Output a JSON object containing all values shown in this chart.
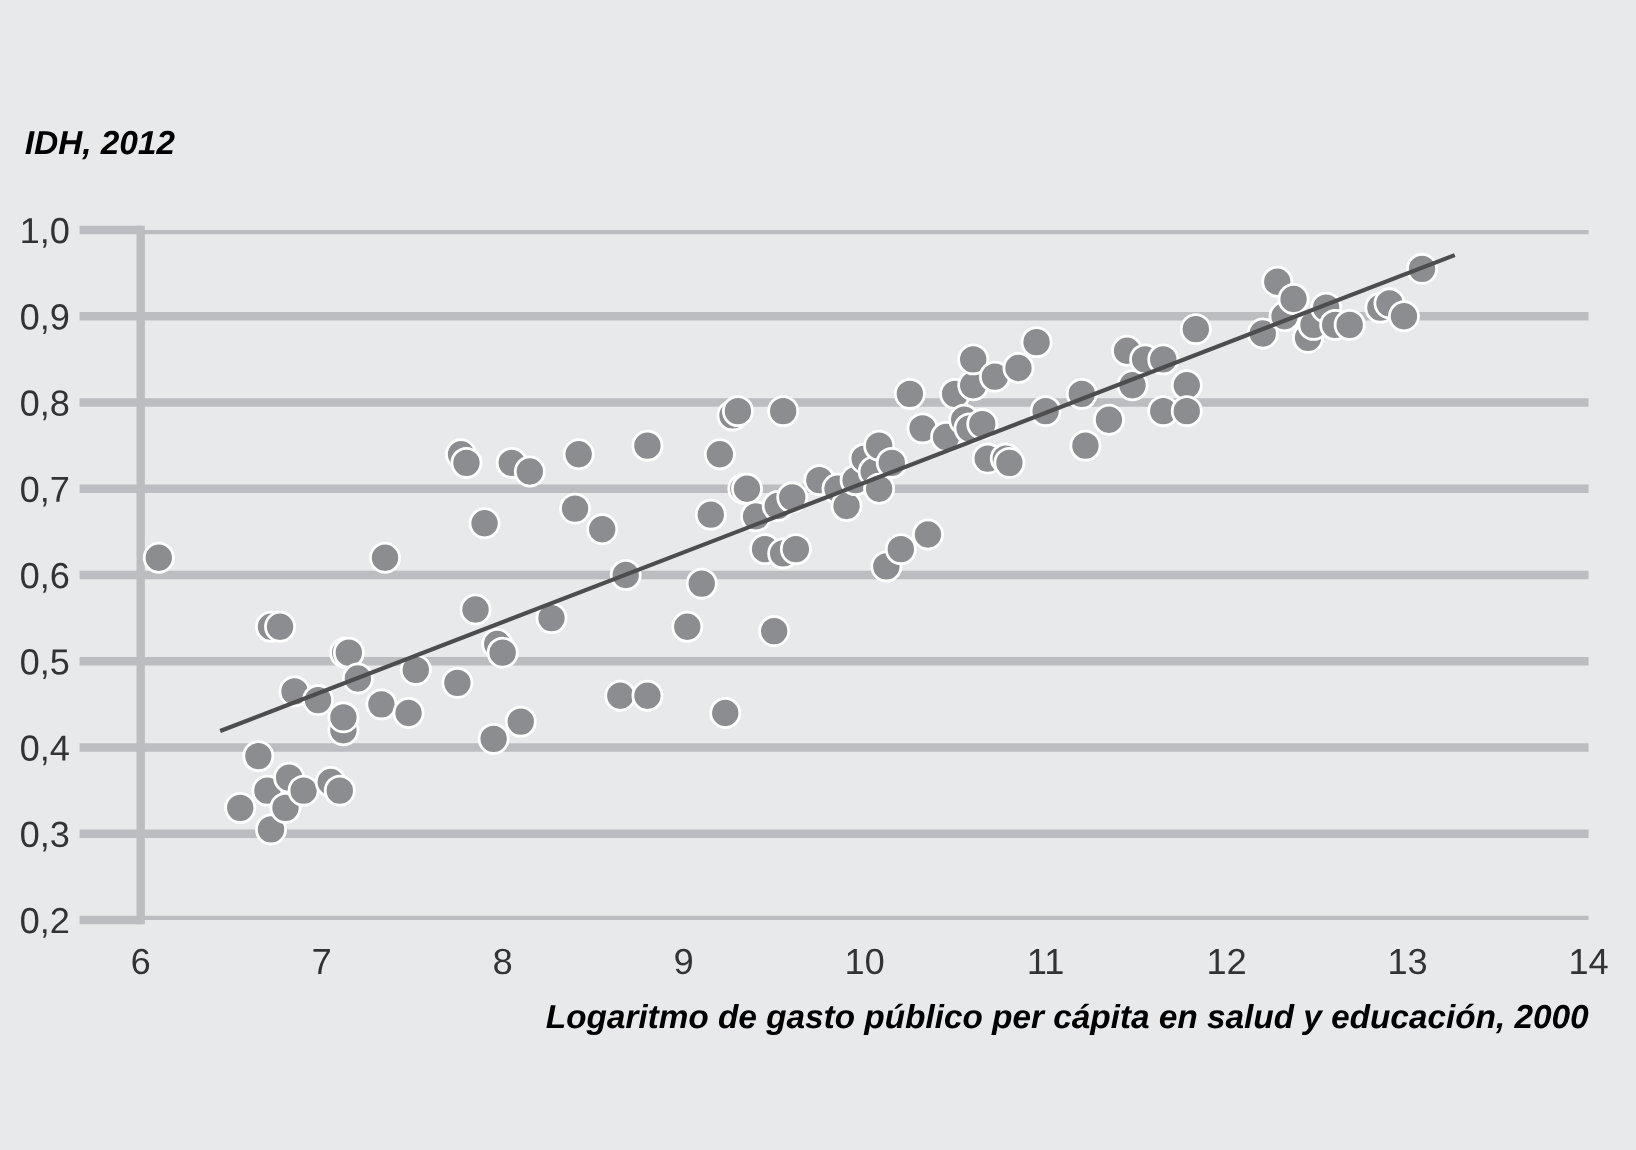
{
  "chart_data": {
    "type": "scatter",
    "ylabel": "IDH, 2012",
    "xlabel": "Logaritmo de gasto público per cápita en salud y educación, 2000",
    "xlim": [
      6,
      14
    ],
    "xticks": [
      6,
      7,
      8,
      9,
      10,
      11,
      12,
      13,
      14
    ],
    "ylim": [
      0.2,
      1.0
    ],
    "yticks": [
      {
        "value": 0.2,
        "label": "0,2"
      },
      {
        "value": 0.3,
        "label": "0,3"
      },
      {
        "value": 0.4,
        "label": "0,4"
      },
      {
        "value": 0.5,
        "label": "0,5"
      },
      {
        "value": 0.6,
        "label": "0,6"
      },
      {
        "value": 0.7,
        "label": "0,7"
      },
      {
        "value": 0.8,
        "label": "0,8"
      },
      {
        "value": 0.9,
        "label": "0,9"
      },
      {
        "value": 1.0,
        "label": "1,0"
      }
    ],
    "grid": "y",
    "legend": false,
    "series": [
      {
        "color": "#8c8d90",
        "marker": "circle",
        "x": [
          6.1,
          6.55,
          6.65,
          6.7,
          6.72,
          6.72,
          6.77,
          6.8,
          6.82,
          6.85,
          6.9,
          6.98,
          7.05,
          7.1,
          7.12,
          7.12,
          7.13,
          7.15,
          7.2,
          7.33,
          7.35,
          7.48,
          7.52,
          7.75,
          7.77,
          7.8,
          7.85,
          7.9,
          7.95,
          7.97,
          8.0,
          8.05,
          8.1,
          8.15,
          8.27,
          8.4,
          8.42,
          8.55,
          8.65,
          8.68,
          8.8,
          8.8,
          9.02,
          9.1,
          9.15,
          9.2,
          9.23,
          9.27,
          9.3,
          9.33,
          9.35,
          9.4,
          9.45,
          9.5,
          9.52,
          9.55,
          9.55,
          9.6,
          9.62,
          9.75,
          9.85,
          9.9,
          9.95,
          10.0,
          10.05,
          10.08,
          10.08,
          10.12,
          10.15,
          10.2,
          10.25,
          10.32,
          10.35,
          10.45,
          10.5,
          10.55,
          10.58,
          10.6,
          10.6,
          10.68,
          10.65,
          10.72,
          10.78,
          10.8,
          10.85,
          10.95,
          11.0,
          11.2,
          11.22,
          11.35,
          11.45,
          11.48,
          11.55,
          11.65,
          11.65,
          11.78,
          11.78,
          11.83,
          12.2,
          12.28,
          12.32,
          12.37,
          12.45,
          12.48,
          12.55,
          12.6,
          12.68,
          12.85,
          12.9,
          12.98,
          13.08
        ],
        "values": [
          0.62,
          0.33,
          0.39,
          0.35,
          0.305,
          0.54,
          0.54,
          0.33,
          0.365,
          0.465,
          0.35,
          0.455,
          0.36,
          0.35,
          0.42,
          0.435,
          0.51,
          0.51,
          0.48,
          0.45,
          0.62,
          0.44,
          0.49,
          0.475,
          0.74,
          0.73,
          0.56,
          0.66,
          0.41,
          0.52,
          0.51,
          0.73,
          0.43,
          0.72,
          0.55,
          0.677,
          0.74,
          0.653,
          0.46,
          0.6,
          0.46,
          0.75,
          0.54,
          0.59,
          0.67,
          0.74,
          0.44,
          0.785,
          0.79,
          0.7,
          0.7,
          0.668,
          0.63,
          0.535,
          0.68,
          0.79,
          0.625,
          0.69,
          0.63,
          0.71,
          0.7,
          0.68,
          0.71,
          0.735,
          0.72,
          0.75,
          0.7,
          0.61,
          0.73,
          0.63,
          0.81,
          0.77,
          0.647,
          0.76,
          0.81,
          0.78,
          0.77,
          0.82,
          0.85,
          0.735,
          0.775,
          0.83,
          0.735,
          0.73,
          0.84,
          0.87,
          0.79,
          0.81,
          0.75,
          0.78,
          0.86,
          0.82,
          0.85,
          0.85,
          0.79,
          0.82,
          0.79,
          0.885,
          0.88,
          0.94,
          0.9,
          0.92,
          0.875,
          0.89,
          0.91,
          0.89,
          0.89,
          0.91,
          0.915,
          0.9,
          0.955
        ]
      },
      {
        "type": "line",
        "color": "#4d4d4f",
        "x": [
          6.45,
          13.25
        ],
        "values": [
          0.42,
          0.97
        ]
      }
    ]
  }
}
